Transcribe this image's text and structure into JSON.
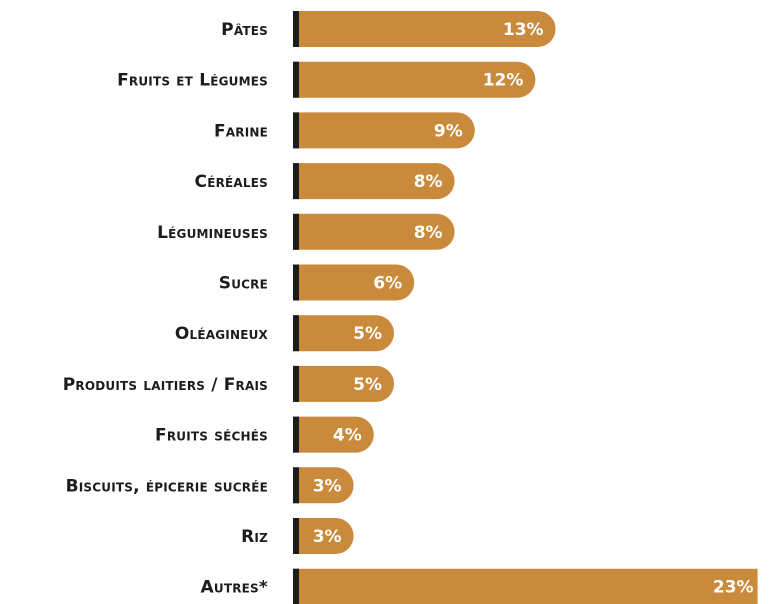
{
  "chart_data": {
    "type": "bar",
    "orientation": "horizontal",
    "categories": [
      "Pâtes",
      "Fruits et Légumes",
      "Farine",
      "Céréales",
      "Légumineuses",
      "Sucre",
      "Oléagineux",
      "Produits laitiers / Frais",
      "Fruits séchés",
      "Biscuits, épicerie sucrée",
      "Riz",
      "Autres*"
    ],
    "values": [
      13,
      12,
      9,
      8,
      8,
      6,
      5,
      5,
      4,
      3,
      3,
      23
    ],
    "value_labels": [
      "13%",
      "12%",
      "9%",
      "8%",
      "8%",
      "6%",
      "5%",
      "5%",
      "4%",
      "3%",
      "3%",
      "23%"
    ],
    "unit": "%",
    "grid": false,
    "legend": "none"
  },
  "colors": {
    "bar": "#C98A3C",
    "axis": "#1c1c1c",
    "label": "#1c1c1c",
    "value_text": "#ffffff"
  }
}
